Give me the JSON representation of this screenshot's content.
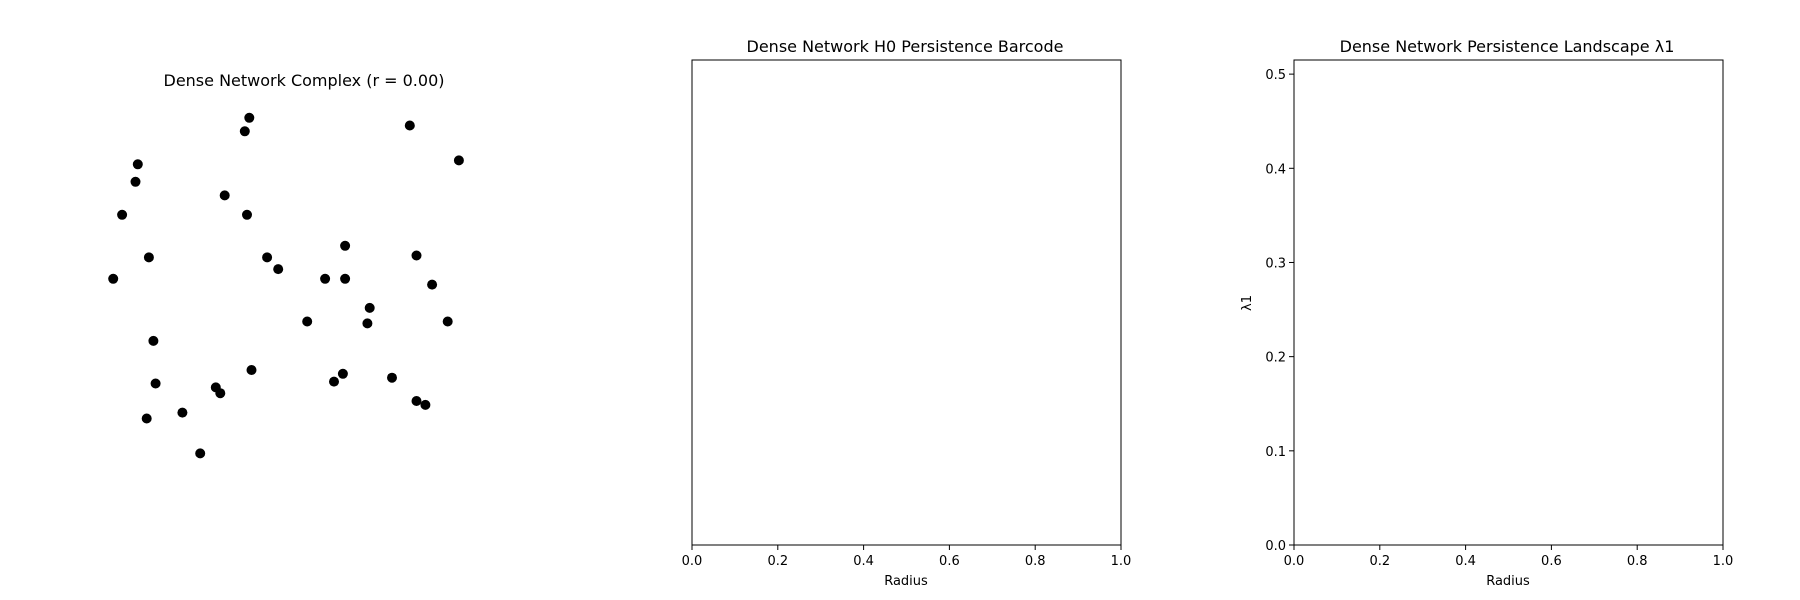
{
  "chart_data": [
    {
      "type": "scatter",
      "title": "Dense Network Complex (r = 0.00)",
      "axes_visible": false,
      "xlim": [
        0,
        1
      ],
      "ylim": [
        0,
        1
      ],
      "marker_color": "#000000",
      "points": [
        {
          "x": 0.07,
          "y": 0.565
        },
        {
          "x": 0.09,
          "y": 0.73
        },
        {
          "x": 0.12,
          "y": 0.815
        },
        {
          "x": 0.125,
          "y": 0.86
        },
        {
          "x": 0.15,
          "y": 0.62
        },
        {
          "x": 0.145,
          "y": 0.205
        },
        {
          "x": 0.165,
          "y": 0.295
        },
        {
          "x": 0.16,
          "y": 0.405
        },
        {
          "x": 0.225,
          "y": 0.22
        },
        {
          "x": 0.265,
          "y": 0.115
        },
        {
          "x": 0.3,
          "y": 0.285
        },
        {
          "x": 0.31,
          "y": 0.27
        },
        {
          "x": 0.32,
          "y": 0.78
        },
        {
          "x": 0.365,
          "y": 0.945
        },
        {
          "x": 0.375,
          "y": 0.98
        },
        {
          "x": 0.37,
          "y": 0.73
        },
        {
          "x": 0.38,
          "y": 0.33
        },
        {
          "x": 0.415,
          "y": 0.62
        },
        {
          "x": 0.44,
          "y": 0.59
        },
        {
          "x": 0.505,
          "y": 0.455
        },
        {
          "x": 0.545,
          "y": 0.565
        },
        {
          "x": 0.565,
          "y": 0.3
        },
        {
          "x": 0.59,
          "y": 0.65
        },
        {
          "x": 0.59,
          "y": 0.565
        },
        {
          "x": 0.585,
          "y": 0.32
        },
        {
          "x": 0.645,
          "y": 0.49
        },
        {
          "x": 0.64,
          "y": 0.45
        },
        {
          "x": 0.695,
          "y": 0.31
        },
        {
          "x": 0.735,
          "y": 0.96
        },
        {
          "x": 0.75,
          "y": 0.625
        },
        {
          "x": 0.75,
          "y": 0.25
        },
        {
          "x": 0.77,
          "y": 0.24
        },
        {
          "x": 0.785,
          "y": 0.55
        },
        {
          "x": 0.82,
          "y": 0.455
        },
        {
          "x": 0.845,
          "y": 0.87
        }
      ]
    },
    {
      "type": "barcode",
      "title": "Dense Network H0 Persistence Barcode",
      "xlabel": "Radius",
      "ylabel": "",
      "xlim": [
        0,
        1
      ],
      "xticks": [
        "0.0",
        "0.2",
        "0.4",
        "0.6",
        "0.8",
        "1.0"
      ],
      "yticks": [],
      "bars": []
    },
    {
      "type": "line",
      "title": "Dense Network Persistence Landscape λ1",
      "xlabel": "Radius",
      "ylabel": "λ1",
      "xlim": [
        0,
        1
      ],
      "ylim": [
        0,
        0.515
      ],
      "xticks": [
        "0.0",
        "0.2",
        "0.4",
        "0.6",
        "0.8",
        "1.0"
      ],
      "yticks": [
        "0.0",
        "0.1",
        "0.2",
        "0.3",
        "0.4",
        "0.5"
      ],
      "series": []
    }
  ]
}
